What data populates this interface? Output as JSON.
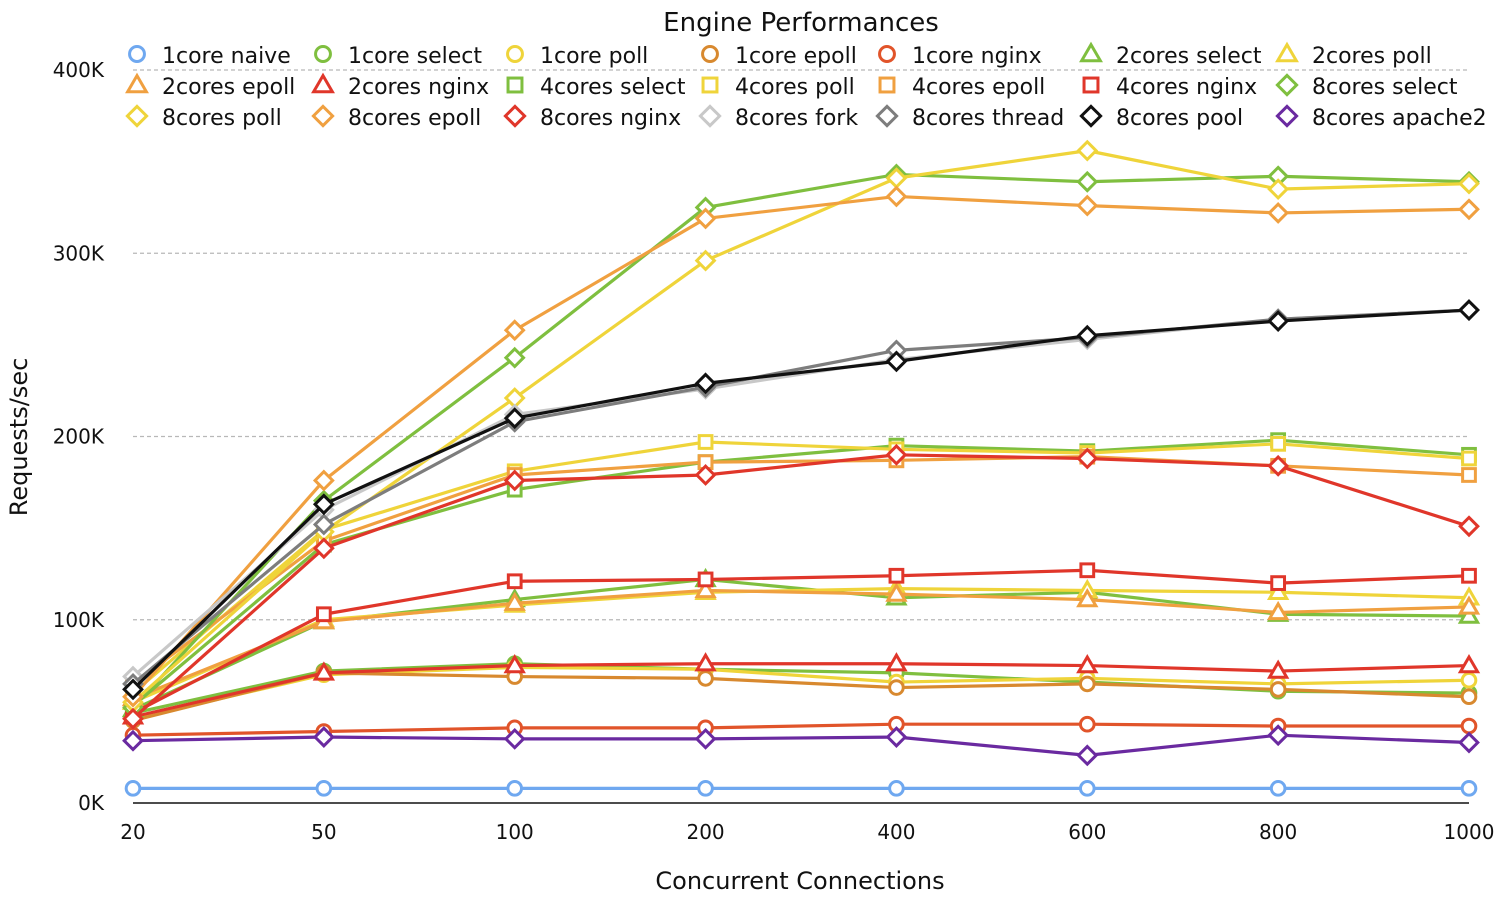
{
  "chart_data": {
    "type": "line",
    "title": "Engine Performances",
    "xlabel": "Concurrent Connections",
    "ylabel": "Requests/sec",
    "categories": [
      "20",
      "50",
      "100",
      "200",
      "400",
      "600",
      "800",
      "1000"
    ],
    "ylim": [
      0,
      400000
    ],
    "yticks": [
      0,
      100000,
      200000,
      300000,
      400000
    ],
    "ytick_labels": [
      "0K",
      "100K",
      "200K",
      "300K",
      "400K"
    ],
    "grid": true,
    "legend_position": "top",
    "series": [
      {
        "name": "1core naive",
        "color": "#6fa8f0",
        "marker": "circle",
        "values": [
          8000,
          8000,
          8000,
          8000,
          8000,
          8000,
          8000,
          8000
        ]
      },
      {
        "name": "1core select",
        "color": "#7fbf3f",
        "marker": "circle",
        "values": [
          49000,
          72000,
          76000,
          73000,
          71000,
          66000,
          61000,
          60000
        ]
      },
      {
        "name": "1core poll",
        "color": "#efd43a",
        "marker": "circle",
        "values": [
          46000,
          70000,
          74000,
          73000,
          66000,
          68000,
          65000,
          67000
        ]
      },
      {
        "name": "1core epoll",
        "color": "#d8892f",
        "marker": "circle",
        "values": [
          45000,
          71000,
          69000,
          68000,
          63000,
          65000,
          62000,
          58000
        ]
      },
      {
        "name": "1core nginx",
        "color": "#e1542a",
        "marker": "circle",
        "values": [
          37000,
          39000,
          41000,
          41000,
          43000,
          43000,
          42000,
          42000
        ]
      },
      {
        "name": "2cores select",
        "color": "#7fbf3f",
        "marker": "triangle",
        "values": [
          51000,
          99000,
          111000,
          122000,
          112000,
          115000,
          103000,
          102000
        ]
      },
      {
        "name": "2cores poll",
        "color": "#efd43a",
        "marker": "triangle",
        "values": [
          55000,
          100000,
          108000,
          115000,
          117000,
          116000,
          115000,
          112000
        ]
      },
      {
        "name": "2cores epoll",
        "color": "#f0a040",
        "marker": "triangle",
        "values": [
          57000,
          99000,
          109000,
          116000,
          114000,
          111000,
          104000,
          107000
        ]
      },
      {
        "name": "2cores nginx",
        "color": "#e0362a",
        "marker": "triangle",
        "values": [
          47000,
          71000,
          75000,
          76000,
          76000,
          75000,
          72000,
          75000
        ]
      },
      {
        "name": "4cores select",
        "color": "#7fbf3f",
        "marker": "square",
        "values": [
          53000,
          141000,
          171000,
          186000,
          195000,
          192000,
          198000,
          190000
        ]
      },
      {
        "name": "4cores poll",
        "color": "#efd43a",
        "marker": "square",
        "values": [
          60000,
          149000,
          181000,
          197000,
          193000,
          191000,
          196000,
          188000
        ]
      },
      {
        "name": "4cores epoll",
        "color": "#f0a040",
        "marker": "square",
        "values": [
          65000,
          143000,
          179000,
          186000,
          187000,
          189000,
          184000,
          179000
        ]
      },
      {
        "name": "4cores nginx",
        "color": "#e0362a",
        "marker": "square",
        "values": [
          49000,
          103000,
          121000,
          122000,
          124000,
          127000,
          120000,
          124000
        ]
      },
      {
        "name": "8cores select",
        "color": "#7fbf3f",
        "marker": "diamond",
        "values": [
          52000,
          165000,
          243000,
          325000,
          343000,
          339000,
          342000,
          339000
        ]
      },
      {
        "name": "8cores poll",
        "color": "#efd43a",
        "marker": "diamond",
        "values": [
          55000,
          148000,
          221000,
          296000,
          341000,
          356000,
          335000,
          338000
        ]
      },
      {
        "name": "8cores epoll",
        "color": "#f0a040",
        "marker": "diamond",
        "values": [
          58000,
          176000,
          258000,
          319000,
          331000,
          326000,
          322000,
          324000
        ]
      },
      {
        "name": "8cores nginx",
        "color": "#e0362a",
        "marker": "diamond",
        "values": [
          46000,
          139000,
          176000,
          179000,
          190000,
          188000,
          184000,
          151000
        ]
      },
      {
        "name": "8cores fork",
        "color": "#c8c8c8",
        "marker": "diamond",
        "values": [
          69000,
          160000,
          212000,
          226000,
          242000,
          253000,
          264000,
          269000
        ]
      },
      {
        "name": "8cores thread",
        "color": "#7d7d7d",
        "marker": "diamond",
        "values": [
          65000,
          152000,
          208000,
          227000,
          247000,
          254000,
          264000,
          269000
        ]
      },
      {
        "name": "8cores pool",
        "color": "#111111",
        "marker": "diamond",
        "values": [
          62000,
          163000,
          210000,
          229000,
          241000,
          255000,
          263000,
          269000
        ]
      },
      {
        "name": "8cores apache2",
        "color": "#6a2aa0",
        "marker": "diamond",
        "values": [
          34000,
          36000,
          35000,
          35000,
          36000,
          26000,
          37000,
          33000
        ]
      }
    ]
  }
}
